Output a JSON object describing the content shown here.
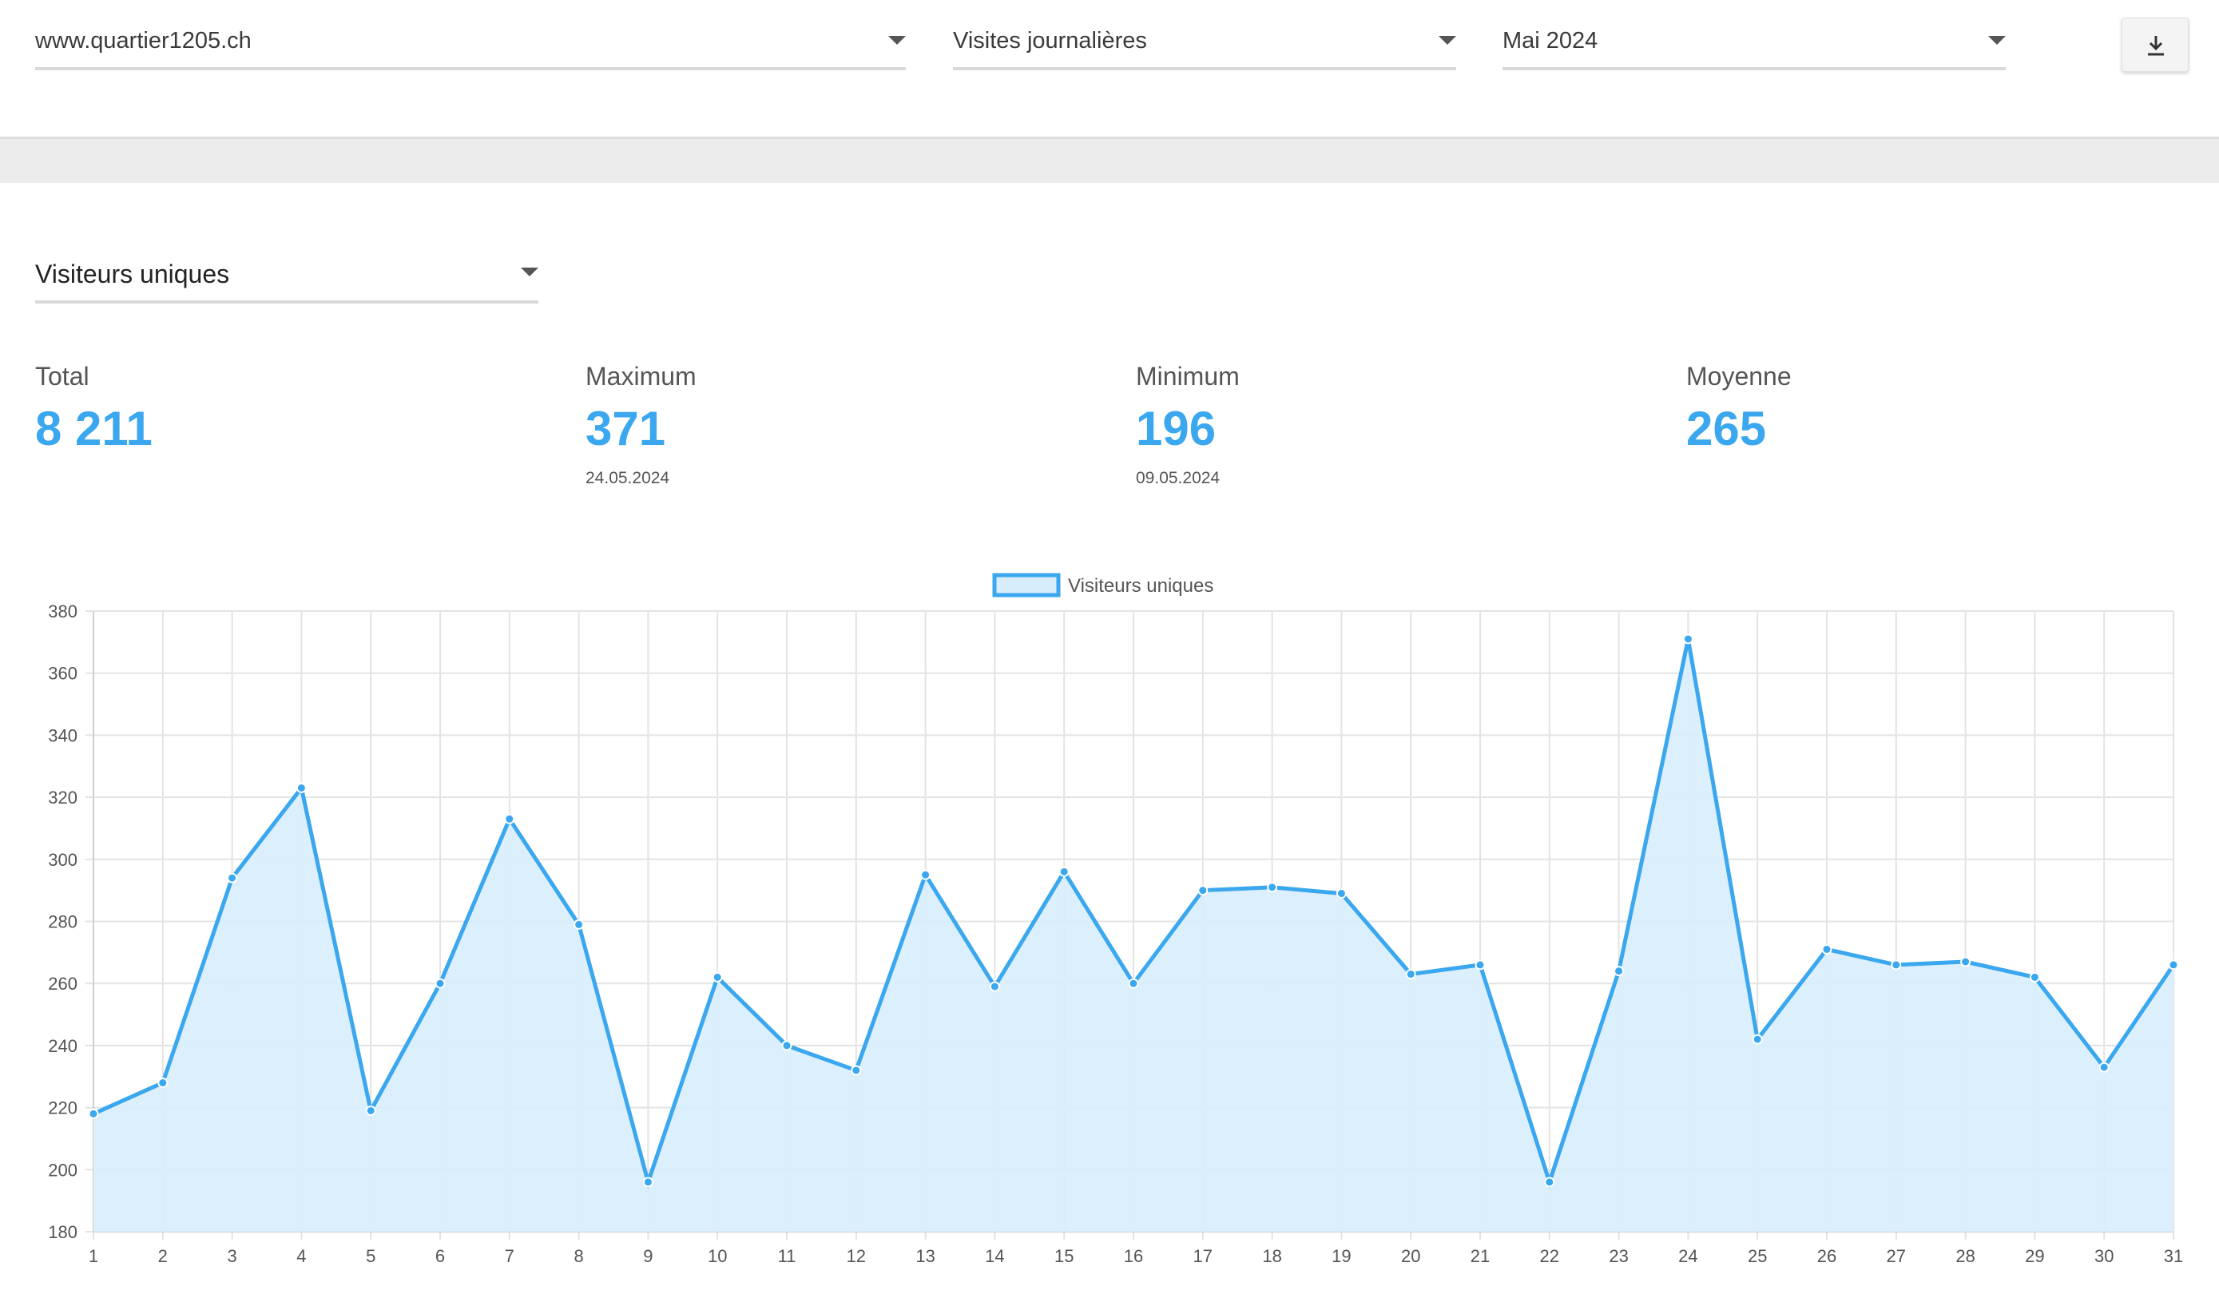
{
  "filters": {
    "site": "www.quartier1205.ch",
    "period_type": "Visites journalières",
    "month": "Mai 2024"
  },
  "toolbar": {
    "download_icon": "download-icon"
  },
  "metric_select": {
    "value": "Visiteurs uniques"
  },
  "stats": {
    "total": {
      "label": "Total",
      "value": "8 211"
    },
    "maximum": {
      "label": "Maximum",
      "value": "371",
      "date": "24.05.2024"
    },
    "minimum": {
      "label": "Minimum",
      "value": "196",
      "date": "09.05.2024"
    },
    "average": {
      "label": "Moyenne",
      "value": "265"
    }
  },
  "colors": {
    "accent": "#3aa7ee",
    "fill": "#d8edfc",
    "grid": "#e3e3e3"
  },
  "chart_data": {
    "type": "area",
    "x": [
      1,
      2,
      3,
      4,
      5,
      6,
      7,
      8,
      9,
      10,
      11,
      12,
      13,
      14,
      15,
      16,
      17,
      18,
      19,
      20,
      21,
      22,
      23,
      24,
      25,
      26,
      27,
      28,
      29,
      30,
      31
    ],
    "series": [
      {
        "name": "Visiteurs uniques",
        "values": [
          218,
          228,
          294,
          323,
          219,
          260,
          313,
          279,
          196,
          262,
          240,
          232,
          295,
          259,
          296,
          260,
          290,
          291,
          289,
          263,
          266,
          196,
          264,
          371,
          242,
          271,
          266,
          267,
          262,
          233,
          266
        ]
      }
    ],
    "ylim": [
      180,
      380
    ],
    "yticks": [
      180,
      200,
      220,
      240,
      260,
      280,
      300,
      320,
      340,
      360,
      380
    ],
    "grid": true,
    "legend": "top-center"
  }
}
